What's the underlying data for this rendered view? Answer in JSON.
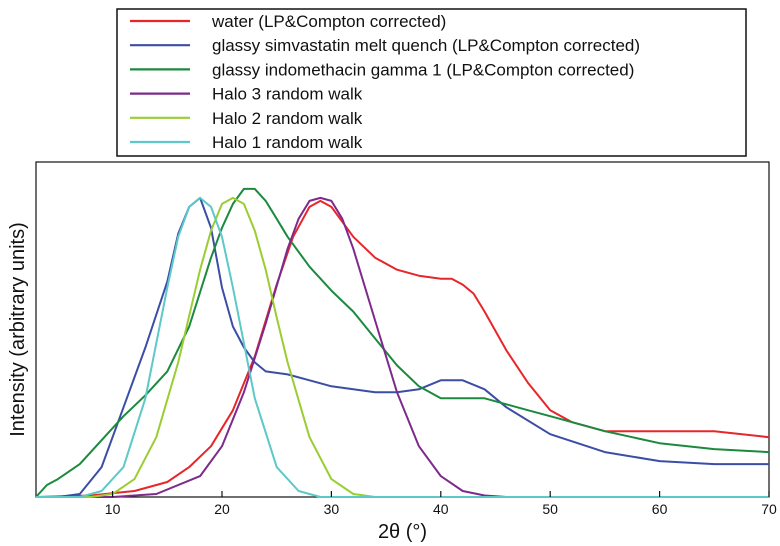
{
  "chart_data": {
    "type": "line",
    "title": "",
    "xlabel": "2θ (°)",
    "ylabel": "Intensity (arbitrary units)",
    "xlim": [
      3,
      70
    ],
    "ylim": [
      0,
      1.12
    ],
    "xticks": [
      10,
      20,
      30,
      40,
      50,
      60,
      70
    ],
    "yticks_shown": false,
    "grid": false,
    "legend_position": "top",
    "series": [
      {
        "name": "water (LP&Compton corrected)",
        "color": "#e8262a",
        "x": [
          3,
          8,
          12,
          15,
          17,
          19,
          21,
          23,
          25,
          26.5,
          28,
          29,
          30,
          32,
          34,
          36,
          38,
          40,
          41,
          42,
          43,
          44,
          46,
          48,
          50,
          52,
          55,
          60,
          65,
          70
        ],
        "y": [
          0,
          0.005,
          0.02,
          0.05,
          0.1,
          0.17,
          0.29,
          0.47,
          0.71,
          0.87,
          0.97,
          0.99,
          0.97,
          0.87,
          0.8,
          0.76,
          0.74,
          0.73,
          0.73,
          0.71,
          0.68,
          0.62,
          0.49,
          0.38,
          0.29,
          0.25,
          0.22,
          0.22,
          0.22,
          0.2
        ]
      },
      {
        "name": "glassy simvastatin melt quench (LP&Compton corrected)",
        "color": "#3b4ea6",
        "x": [
          3,
          5,
          7,
          9,
          11,
          13,
          15,
          16,
          17,
          18,
          19,
          20,
          21,
          22,
          23,
          24,
          26,
          28,
          30,
          32,
          34,
          36,
          38,
          40,
          42,
          44,
          46,
          50,
          55,
          60,
          65,
          70
        ],
        "y": [
          0,
          0,
          0.01,
          0.1,
          0.3,
          0.5,
          0.72,
          0.88,
          0.97,
          1.0,
          0.9,
          0.7,
          0.57,
          0.5,
          0.45,
          0.42,
          0.41,
          0.39,
          0.37,
          0.36,
          0.35,
          0.35,
          0.36,
          0.39,
          0.39,
          0.36,
          0.3,
          0.21,
          0.15,
          0.12,
          0.11,
          0.11
        ]
      },
      {
        "name": "glassy indomethacin gamma 1 (LP&Compton corrected)",
        "color": "#1b8a3e",
        "x": [
          3,
          4,
          5,
          7,
          9,
          11,
          13,
          15,
          17,
          19,
          20,
          21,
          22,
          23,
          24,
          25,
          26,
          28,
          30,
          32,
          34,
          36,
          38,
          40,
          42,
          44,
          46,
          48,
          50,
          55,
          60,
          65,
          70
        ],
        "y": [
          0,
          0.04,
          0.06,
          0.11,
          0.19,
          0.27,
          0.34,
          0.42,
          0.57,
          0.8,
          0.9,
          0.98,
          1.03,
          1.03,
          0.99,
          0.93,
          0.87,
          0.77,
          0.69,
          0.62,
          0.53,
          0.44,
          0.37,
          0.33,
          0.33,
          0.33,
          0.31,
          0.29,
          0.27,
          0.22,
          0.18,
          0.16,
          0.15
        ]
      },
      {
        "name": "Halo 3 random walk",
        "color": "#7d2a8c",
        "x": [
          3,
          10,
          14,
          18,
          20,
          22,
          24,
          26,
          27,
          28,
          29,
          30,
          31,
          32,
          34,
          36,
          38,
          40,
          42,
          44,
          46,
          48,
          50,
          55,
          70
        ],
        "y": [
          0,
          0,
          0.01,
          0.07,
          0.17,
          0.35,
          0.58,
          0.83,
          0.93,
          0.99,
          1.0,
          0.99,
          0.93,
          0.83,
          0.59,
          0.35,
          0.17,
          0.07,
          0.02,
          0.005,
          0,
          0,
          0,
          0,
          0
        ]
      },
      {
        "name": "Halo 2 random walk",
        "color": "#9acd32",
        "x": [
          3,
          8,
          10,
          12,
          14,
          16,
          18,
          19,
          20,
          21,
          22,
          23,
          24,
          25,
          26,
          28,
          30,
          32,
          34,
          40,
          70
        ],
        "y": [
          0,
          0,
          0.01,
          0.06,
          0.2,
          0.45,
          0.76,
          0.89,
          0.98,
          1.0,
          0.98,
          0.89,
          0.76,
          0.6,
          0.45,
          0.2,
          0.06,
          0.01,
          0,
          0,
          0
        ]
      },
      {
        "name": "Halo 1 random walk",
        "color": "#5cc8c8",
        "x": [
          3,
          7,
          9,
          11,
          13,
          15,
          16,
          17,
          18,
          19,
          20,
          21,
          23,
          25,
          27,
          29,
          32,
          70
        ],
        "y": [
          0,
          0,
          0.02,
          0.1,
          0.33,
          0.7,
          0.87,
          0.97,
          1.0,
          0.97,
          0.87,
          0.7,
          0.33,
          0.1,
          0.02,
          0,
          0,
          0
        ]
      }
    ]
  }
}
